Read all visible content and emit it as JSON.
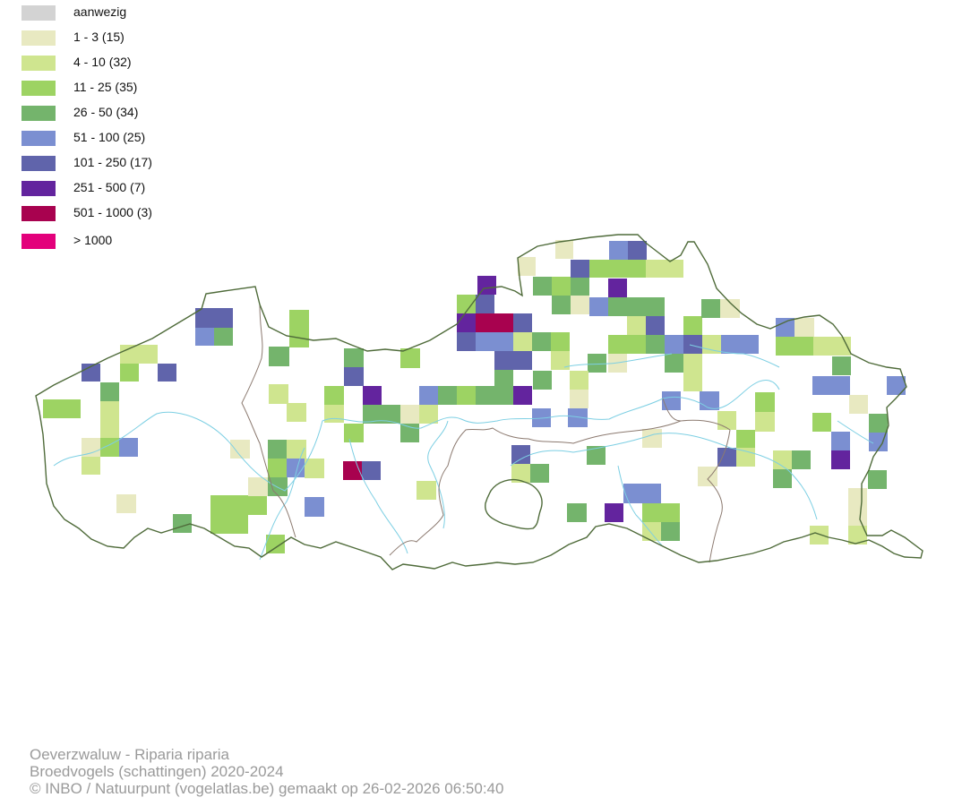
{
  "legend": {
    "items": [
      {
        "label": "aanwezig",
        "color": "#d3d3d3"
      },
      {
        "label": "1 - 3 (15)",
        "color": "#e8e9c1"
      },
      {
        "label": "4 - 10 (32)",
        "color": "#cfe58f"
      },
      {
        "label": "11 - 25 (35)",
        "color": "#9dd363"
      },
      {
        "label": "26 - 50 (34)",
        "color": "#74b46c"
      },
      {
        "label": "51 - 100 (25)",
        "color": "#7b8fd1"
      },
      {
        "label": "101 - 250 (17)",
        "color": "#6064ab"
      },
      {
        "label": "251 - 500 (7)",
        "color": "#63249e"
      },
      {
        "label": "501 - 1000 (3)",
        "color": "#a8024f"
      },
      {
        "label": "> 1000",
        "color": "#e3007b"
      }
    ]
  },
  "map": {
    "colors": {
      "outline": "#4f6b3a",
      "province": "#8c7a70",
      "river": "#7dcfe3",
      "cells": {
        "c1": "#e8e9c1",
        "c2": "#cfe58f",
        "c3": "#9dd363",
        "c4": "#74b46c",
        "c5": "#7b8fd1",
        "c6": "#6064ab",
        "c7": "#63249e",
        "c8": "#a8024f"
      }
    }
  },
  "footer": {
    "species": "Oeverzwaluw - Riparia riparia",
    "dataset": "Broedvogels (schattingen) 2020-2024",
    "credit": "© INBO / Natuurpunt (vogelatlas.be) gemaakt op 26-02-2026 06:50:40"
  }
}
